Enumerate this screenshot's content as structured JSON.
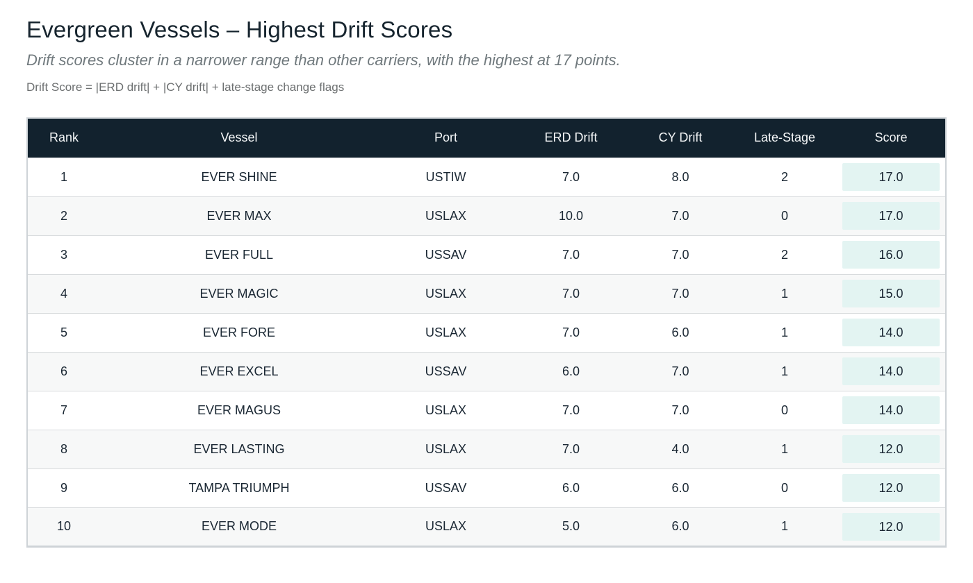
{
  "page": {
    "title": "Evergreen Vessels – Highest Drift Scores",
    "subtitle": "Drift scores cluster in a narrower range than other carriers, with the highest at 17 points.",
    "formula": "Drift Score = |ERD drift| + |CY drift| + late-stage change flags"
  },
  "colors": {
    "header_bg": "#12222e",
    "header_text": "#f5f7f8",
    "score_badge_bg": "#e3f4f2",
    "alt_row_bg": "#f7f8f8",
    "body_text": "#1a2733",
    "border": "#ced3d7"
  },
  "chart_data": {
    "type": "table",
    "title": "Evergreen Vessels – Highest Drift Scores",
    "columns": [
      "Rank",
      "Vessel",
      "Port",
      "ERD Drift",
      "CY Drift",
      "Late-Stage",
      "Score"
    ],
    "rows": [
      [
        "1",
        "EVER SHINE",
        "USTIW",
        "7.0",
        "8.0",
        "2",
        "17.0"
      ],
      [
        "2",
        "EVER MAX",
        "USLAX",
        "10.0",
        "7.0",
        "0",
        "17.0"
      ],
      [
        "3",
        "EVER FULL",
        "USSAV",
        "7.0",
        "7.0",
        "2",
        "16.0"
      ],
      [
        "4",
        "EVER MAGIC",
        "USLAX",
        "7.0",
        "7.0",
        "1",
        "15.0"
      ],
      [
        "5",
        "EVER FORE",
        "USLAX",
        "7.0",
        "6.0",
        "1",
        "14.0"
      ],
      [
        "6",
        "EVER EXCEL",
        "USSAV",
        "6.0",
        "7.0",
        "1",
        "14.0"
      ],
      [
        "7",
        "EVER MAGUS",
        "USLAX",
        "7.0",
        "7.0",
        "0",
        "14.0"
      ],
      [
        "8",
        "EVER LASTING",
        "USLAX",
        "7.0",
        "4.0",
        "1",
        "12.0"
      ],
      [
        "9",
        "TAMPA TRIUMPH",
        "USSAV",
        "6.0",
        "6.0",
        "0",
        "12.0"
      ],
      [
        "10",
        "EVER MODE",
        "USLAX",
        "5.0",
        "6.0",
        "1",
        "12.0"
      ]
    ]
  }
}
